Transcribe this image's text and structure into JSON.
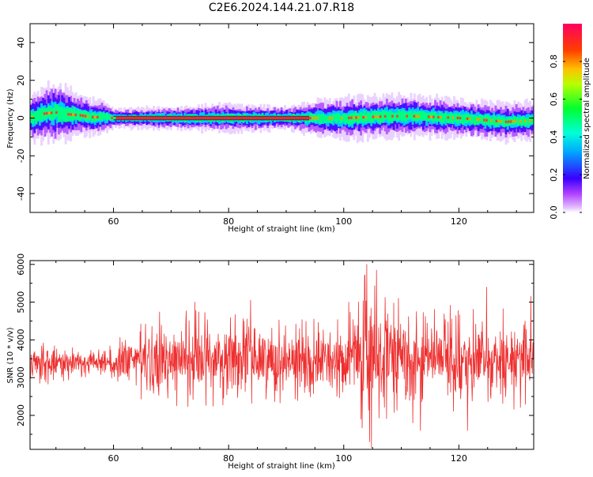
{
  "title": "C2E6.2024.144.21.07.R18",
  "chart_data": [
    {
      "type": "heatmap",
      "title": "",
      "xlabel": "Height of straight line (km)",
      "ylabel": "Frequency (Hz)",
      "xlim": [
        45.5,
        133
      ],
      "ylim": [
        -50,
        50
      ],
      "xticks": [
        60,
        80,
        100,
        120
      ],
      "yticks": [
        -40,
        -20,
        0,
        20,
        40
      ],
      "ridge": {
        "x": [
          46,
          48,
          50,
          52,
          54,
          56,
          58,
          60,
          70,
          80,
          90,
          94,
          96,
          100,
          104,
          108,
          112,
          116,
          120,
          124,
          128,
          132,
          133
        ],
        "y": [
          0.5,
          2.5,
          3.0,
          2.0,
          1.5,
          0.5,
          0.5,
          0.0,
          0.0,
          0.0,
          0.0,
          0.0,
          0.0,
          0.0,
          0.5,
          1.0,
          1.0,
          0.5,
          0.0,
          -1.0,
          -2.0,
          -1.5,
          -1.0
        ]
      },
      "spread": {
        "x": [
          46,
          50,
          54,
          58,
          60,
          70,
          80,
          90,
          94,
          100,
          110,
          120,
          133
        ],
        "hz": [
          5.0,
          6.5,
          4.5,
          3.5,
          2.0,
          2.5,
          3.0,
          2.5,
          3.5,
          4.5,
          4.5,
          4.0,
          4.0
        ]
      },
      "colorbar": {
        "label": "Normalized spectral amplitude",
        "range": [
          0,
          1
        ],
        "ticks": [
          "0.0",
          "0.2",
          "0.4",
          "0.6",
          "0.8"
        ],
        "colormap": "gist_rainbow_r"
      }
    },
    {
      "type": "line",
      "title": "",
      "xlabel": "Height of straight line (km)",
      "ylabel": "SNR (10 * v/v)",
      "xlim": [
        45.5,
        133
      ],
      "ylim": [
        1100,
        6100
      ],
      "xticks": [
        60,
        80,
        100,
        120
      ],
      "yticks": [
        2000,
        3000,
        4000,
        5000,
        6000
      ],
      "color": "#ee3030",
      "envelope": {
        "x": [
          45.5,
          50,
          54,
          58,
          60,
          64,
          68,
          72,
          76,
          80,
          84,
          88,
          92,
          96,
          100,
          102,
          104,
          106,
          108,
          110,
          114,
          118,
          122,
          126,
          130,
          133
        ],
        "mean": [
          3400,
          3420,
          3380,
          3400,
          3350,
          3450,
          3500,
          3450,
          3500,
          3500,
          3550,
          3500,
          3500,
          3400,
          3450,
          3600,
          3500,
          3550,
          3500,
          3500,
          3500,
          3500,
          3450,
          3500,
          3500,
          3500
        ],
        "amplitude": [
          350,
          380,
          250,
          220,
          350,
          650,
          800,
          850,
          800,
          800,
          800,
          750,
          750,
          700,
          800,
          1300,
          1500,
          1150,
          1000,
          950,
          900,
          900,
          850,
          850,
          850,
          800
        ]
      },
      "peaks": [
        {
          "x": 104.0,
          "y": 6000
        },
        {
          "x": 105.7,
          "y": 5850
        },
        {
          "x": 103.6,
          "y": 5700
        },
        {
          "x": 104.8,
          "y": 1150
        },
        {
          "x": 104.5,
          "y": 1300
        },
        {
          "x": 103.0,
          "y": 1900
        },
        {
          "x": 124.8,
          "y": 5400
        },
        {
          "x": 132.5,
          "y": 5150
        },
        {
          "x": 83.8,
          "y": 5050
        },
        {
          "x": 74.1,
          "y": 5000
        },
        {
          "x": 113.3,
          "y": 1600
        },
        {
          "x": 121.5,
          "y": 1600
        },
        {
          "x": 112.0,
          "y": 1800
        },
        {
          "x": 109.5,
          "y": 5100
        }
      ]
    }
  ]
}
